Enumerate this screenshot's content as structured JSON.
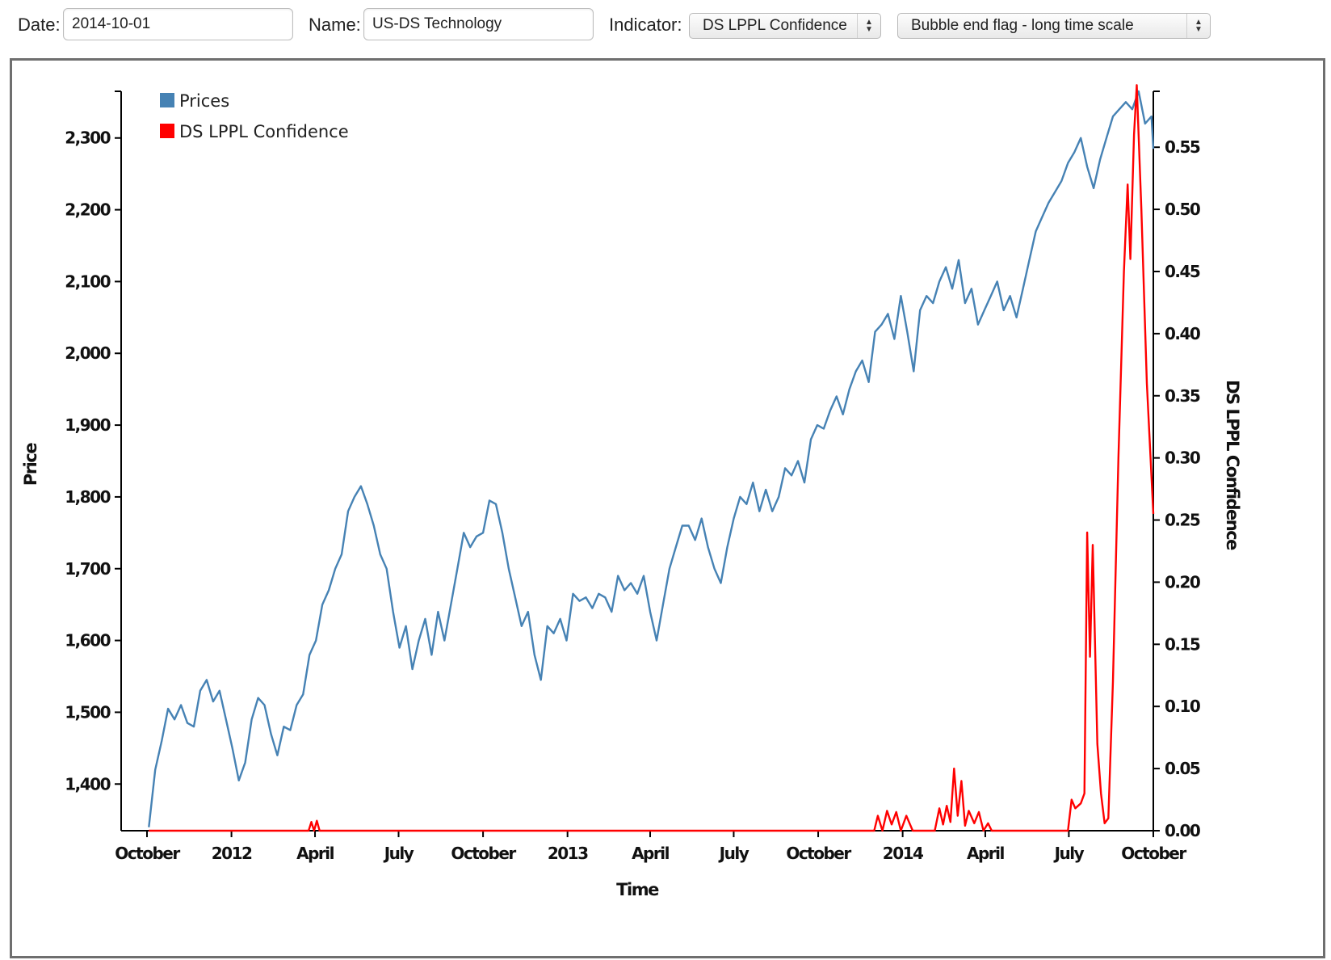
{
  "controls": {
    "date_label": "Date:",
    "date_value": "2014-10-01",
    "name_label": "Name:",
    "name_value": "US-DS Technology",
    "indicator_label": "Indicator:",
    "indicator_value": "DS LPPL Confidence",
    "flag_value": "Bubble end flag - long time scale"
  },
  "colors": {
    "prices": "#4682b4",
    "indicator": "#ff0000",
    "axis": "#000000"
  },
  "chart_data": {
    "type": "line",
    "title": "",
    "xlabel": "Time",
    "ylabel": "Price",
    "y2label": "DS LPPL Confidence",
    "xlim": [
      "2011-10-01",
      "2014-10-01"
    ],
    "ylim": [
      1335,
      2365
    ],
    "y2lim": [
      0,
      0.595
    ],
    "x_tick_labels": [
      "October",
      "2012",
      "April",
      "July",
      "October",
      "2013",
      "April",
      "July",
      "October",
      "2014",
      "April",
      "July",
      "October"
    ],
    "y_ticks": [
      "1,400",
      "1,500",
      "1,600",
      "1,700",
      "1,800",
      "1,900",
      "2,000",
      "2,100",
      "2,200",
      "2,300"
    ],
    "y2_ticks": [
      "0.00",
      "0.05",
      "0.10",
      "0.15",
      "0.20",
      "0.25",
      "0.30",
      "0.35",
      "0.40",
      "0.45",
      "0.50",
      "0.55"
    ],
    "legend_position": "top-left",
    "series": [
      {
        "name": "Prices",
        "axis": "left",
        "points": [
          [
            "2011-10-03",
            1340
          ],
          [
            "2011-10-10",
            1420
          ],
          [
            "2011-10-17",
            1460
          ],
          [
            "2011-10-24",
            1505
          ],
          [
            "2011-10-31",
            1490
          ],
          [
            "2011-11-07",
            1510
          ],
          [
            "2011-11-14",
            1485
          ],
          [
            "2011-11-21",
            1480
          ],
          [
            "2011-11-28",
            1530
          ],
          [
            "2011-12-05",
            1545
          ],
          [
            "2011-12-12",
            1515
          ],
          [
            "2011-12-19",
            1530
          ],
          [
            "2011-12-26",
            1490
          ],
          [
            "2012-01-02",
            1450
          ],
          [
            "2012-01-09",
            1405
          ],
          [
            "2012-01-16",
            1430
          ],
          [
            "2012-01-23",
            1490
          ],
          [
            "2012-01-30",
            1520
          ],
          [
            "2012-02-06",
            1510
          ],
          [
            "2012-02-13",
            1470
          ],
          [
            "2012-02-20",
            1440
          ],
          [
            "2012-02-27",
            1480
          ],
          [
            "2012-03-05",
            1475
          ],
          [
            "2012-03-12",
            1510
          ],
          [
            "2012-03-19",
            1525
          ],
          [
            "2012-03-26",
            1580
          ],
          [
            "2012-04-02",
            1600
          ],
          [
            "2012-04-09",
            1650
          ],
          [
            "2012-04-16",
            1670
          ],
          [
            "2012-04-23",
            1700
          ],
          [
            "2012-04-30",
            1720
          ],
          [
            "2012-05-07",
            1780
          ],
          [
            "2012-05-14",
            1800
          ],
          [
            "2012-05-21",
            1815
          ],
          [
            "2012-05-28",
            1790
          ],
          [
            "2012-06-04",
            1760
          ],
          [
            "2012-06-11",
            1720
          ],
          [
            "2012-06-18",
            1700
          ],
          [
            "2012-06-25",
            1640
          ],
          [
            "2012-07-02",
            1590
          ],
          [
            "2012-07-09",
            1620
          ],
          [
            "2012-07-16",
            1560
          ],
          [
            "2012-07-23",
            1600
          ],
          [
            "2012-07-30",
            1630
          ],
          [
            "2012-08-06",
            1580
          ],
          [
            "2012-08-13",
            1640
          ],
          [
            "2012-08-20",
            1600
          ],
          [
            "2012-08-27",
            1650
          ],
          [
            "2012-09-03",
            1700
          ],
          [
            "2012-09-10",
            1750
          ],
          [
            "2012-09-17",
            1730
          ],
          [
            "2012-09-24",
            1745
          ],
          [
            "2012-10-01",
            1750
          ],
          [
            "2012-10-08",
            1795
          ],
          [
            "2012-10-15",
            1790
          ],
          [
            "2012-10-22",
            1750
          ],
          [
            "2012-10-29",
            1700
          ],
          [
            "2012-11-05",
            1660
          ],
          [
            "2012-11-12",
            1620
          ],
          [
            "2012-11-19",
            1640
          ],
          [
            "2012-11-26",
            1580
          ],
          [
            "2012-12-03",
            1545
          ],
          [
            "2012-12-10",
            1620
          ],
          [
            "2012-12-17",
            1610
          ],
          [
            "2012-12-24",
            1630
          ],
          [
            "2012-12-31",
            1600
          ],
          [
            "2013-01-07",
            1665
          ],
          [
            "2013-01-14",
            1655
          ],
          [
            "2013-01-21",
            1660
          ],
          [
            "2013-01-28",
            1645
          ],
          [
            "2013-02-04",
            1665
          ],
          [
            "2013-02-11",
            1660
          ],
          [
            "2013-02-18",
            1640
          ],
          [
            "2013-02-25",
            1690
          ],
          [
            "2013-03-04",
            1670
          ],
          [
            "2013-03-11",
            1680
          ],
          [
            "2013-03-18",
            1665
          ],
          [
            "2013-03-25",
            1690
          ],
          [
            "2013-04-01",
            1640
          ],
          [
            "2013-04-08",
            1600
          ],
          [
            "2013-04-15",
            1650
          ],
          [
            "2013-04-22",
            1700
          ],
          [
            "2013-04-29",
            1730
          ],
          [
            "2013-05-06",
            1760
          ],
          [
            "2013-05-13",
            1760
          ],
          [
            "2013-05-20",
            1740
          ],
          [
            "2013-05-27",
            1770
          ],
          [
            "2013-06-03",
            1730
          ],
          [
            "2013-06-10",
            1700
          ],
          [
            "2013-06-17",
            1680
          ],
          [
            "2013-06-24",
            1730
          ],
          [
            "2013-07-01",
            1770
          ],
          [
            "2013-07-08",
            1800
          ],
          [
            "2013-07-15",
            1790
          ],
          [
            "2013-07-22",
            1820
          ],
          [
            "2013-07-29",
            1780
          ],
          [
            "2013-08-05",
            1810
          ],
          [
            "2013-08-12",
            1780
          ],
          [
            "2013-08-19",
            1800
          ],
          [
            "2013-08-26",
            1840
          ],
          [
            "2013-09-02",
            1830
          ],
          [
            "2013-09-09",
            1850
          ],
          [
            "2013-09-16",
            1820
          ],
          [
            "2013-09-23",
            1880
          ],
          [
            "2013-09-30",
            1900
          ],
          [
            "2013-10-07",
            1895
          ],
          [
            "2013-10-14",
            1920
          ],
          [
            "2013-10-21",
            1940
          ],
          [
            "2013-10-28",
            1915
          ],
          [
            "2013-11-04",
            1950
          ],
          [
            "2013-11-11",
            1975
          ],
          [
            "2013-11-18",
            1990
          ],
          [
            "2013-11-25",
            1960
          ],
          [
            "2013-12-02",
            2030
          ],
          [
            "2013-12-09",
            2040
          ],
          [
            "2013-12-16",
            2055
          ],
          [
            "2013-12-23",
            2020
          ],
          [
            "2013-12-30",
            2080
          ],
          [
            "2014-01-06",
            2030
          ],
          [
            "2014-01-13",
            1975
          ],
          [
            "2014-01-20",
            2060
          ],
          [
            "2014-01-27",
            2080
          ],
          [
            "2014-02-03",
            2070
          ],
          [
            "2014-02-10",
            2100
          ],
          [
            "2014-02-17",
            2120
          ],
          [
            "2014-02-24",
            2090
          ],
          [
            "2014-03-03",
            2130
          ],
          [
            "2014-03-10",
            2070
          ],
          [
            "2014-03-17",
            2090
          ],
          [
            "2014-03-24",
            2040
          ],
          [
            "2014-03-31",
            2060
          ],
          [
            "2014-04-07",
            2080
          ],
          [
            "2014-04-14",
            2100
          ],
          [
            "2014-04-21",
            2060
          ],
          [
            "2014-04-28",
            2080
          ],
          [
            "2014-05-05",
            2050
          ],
          [
            "2014-05-12",
            2090
          ],
          [
            "2014-05-19",
            2130
          ],
          [
            "2014-05-26",
            2170
          ],
          [
            "2014-06-02",
            2190
          ],
          [
            "2014-06-09",
            2210
          ],
          [
            "2014-06-16",
            2225
          ],
          [
            "2014-06-23",
            2240
          ],
          [
            "2014-06-30",
            2265
          ],
          [
            "2014-07-07",
            2280
          ],
          [
            "2014-07-14",
            2300
          ],
          [
            "2014-07-21",
            2260
          ],
          [
            "2014-07-28",
            2230
          ],
          [
            "2014-08-04",
            2270
          ],
          [
            "2014-08-11",
            2300
          ],
          [
            "2014-08-18",
            2330
          ],
          [
            "2014-08-25",
            2340
          ],
          [
            "2014-09-01",
            2350
          ],
          [
            "2014-09-08",
            2340
          ],
          [
            "2014-09-15",
            2365
          ],
          [
            "2014-09-22",
            2320
          ],
          [
            "2014-09-29",
            2330
          ],
          [
            "2014-10-01",
            2285
          ]
        ]
      },
      {
        "name": "DS LPPL Confidence",
        "axis": "right",
        "points": [
          [
            "2011-10-03",
            0.0
          ],
          [
            "2012-03-25",
            0.0
          ],
          [
            "2012-03-28",
            0.007
          ],
          [
            "2012-03-31",
            0.0
          ],
          [
            "2012-04-03",
            0.008
          ],
          [
            "2012-04-06",
            0.0
          ],
          [
            "2013-12-01",
            0.0
          ],
          [
            "2013-12-05",
            0.012
          ],
          [
            "2013-12-10",
            0.0
          ],
          [
            "2013-12-15",
            0.016
          ],
          [
            "2013-12-20",
            0.005
          ],
          [
            "2013-12-25",
            0.015
          ],
          [
            "2013-12-30",
            0.0
          ],
          [
            "2014-01-05",
            0.012
          ],
          [
            "2014-01-12",
            0.0
          ],
          [
            "2014-02-05",
            0.0
          ],
          [
            "2014-02-10",
            0.018
          ],
          [
            "2014-02-14",
            0.005
          ],
          [
            "2014-02-18",
            0.02
          ],
          [
            "2014-02-22",
            0.007
          ],
          [
            "2014-02-26",
            0.05
          ],
          [
            "2014-03-02",
            0.012
          ],
          [
            "2014-03-06",
            0.04
          ],
          [
            "2014-03-10",
            0.004
          ],
          [
            "2014-03-14",
            0.016
          ],
          [
            "2014-03-20",
            0.006
          ],
          [
            "2014-03-25",
            0.015
          ],
          [
            "2014-03-30",
            0.0
          ],
          [
            "2014-04-04",
            0.006
          ],
          [
            "2014-04-08",
            0.0
          ],
          [
            "2014-06-30",
            0.0
          ],
          [
            "2014-07-04",
            0.025
          ],
          [
            "2014-07-08",
            0.018
          ],
          [
            "2014-07-14",
            0.022
          ],
          [
            "2014-07-18",
            0.03
          ],
          [
            "2014-07-21",
            0.24
          ],
          [
            "2014-07-24",
            0.14
          ],
          [
            "2014-07-27",
            0.23
          ],
          [
            "2014-08-01",
            0.07
          ],
          [
            "2014-08-05",
            0.03
          ],
          [
            "2014-08-09",
            0.006
          ],
          [
            "2014-08-13",
            0.01
          ],
          [
            "2014-08-18",
            0.12
          ],
          [
            "2014-08-24",
            0.3
          ],
          [
            "2014-08-30",
            0.45
          ],
          [
            "2014-09-03",
            0.52
          ],
          [
            "2014-09-06",
            0.46
          ],
          [
            "2014-09-10",
            0.56
          ],
          [
            "2014-09-13",
            0.6
          ],
          [
            "2014-09-18",
            0.5
          ],
          [
            "2014-09-24",
            0.36
          ],
          [
            "2014-10-01",
            0.255
          ]
        ]
      }
    ]
  }
}
